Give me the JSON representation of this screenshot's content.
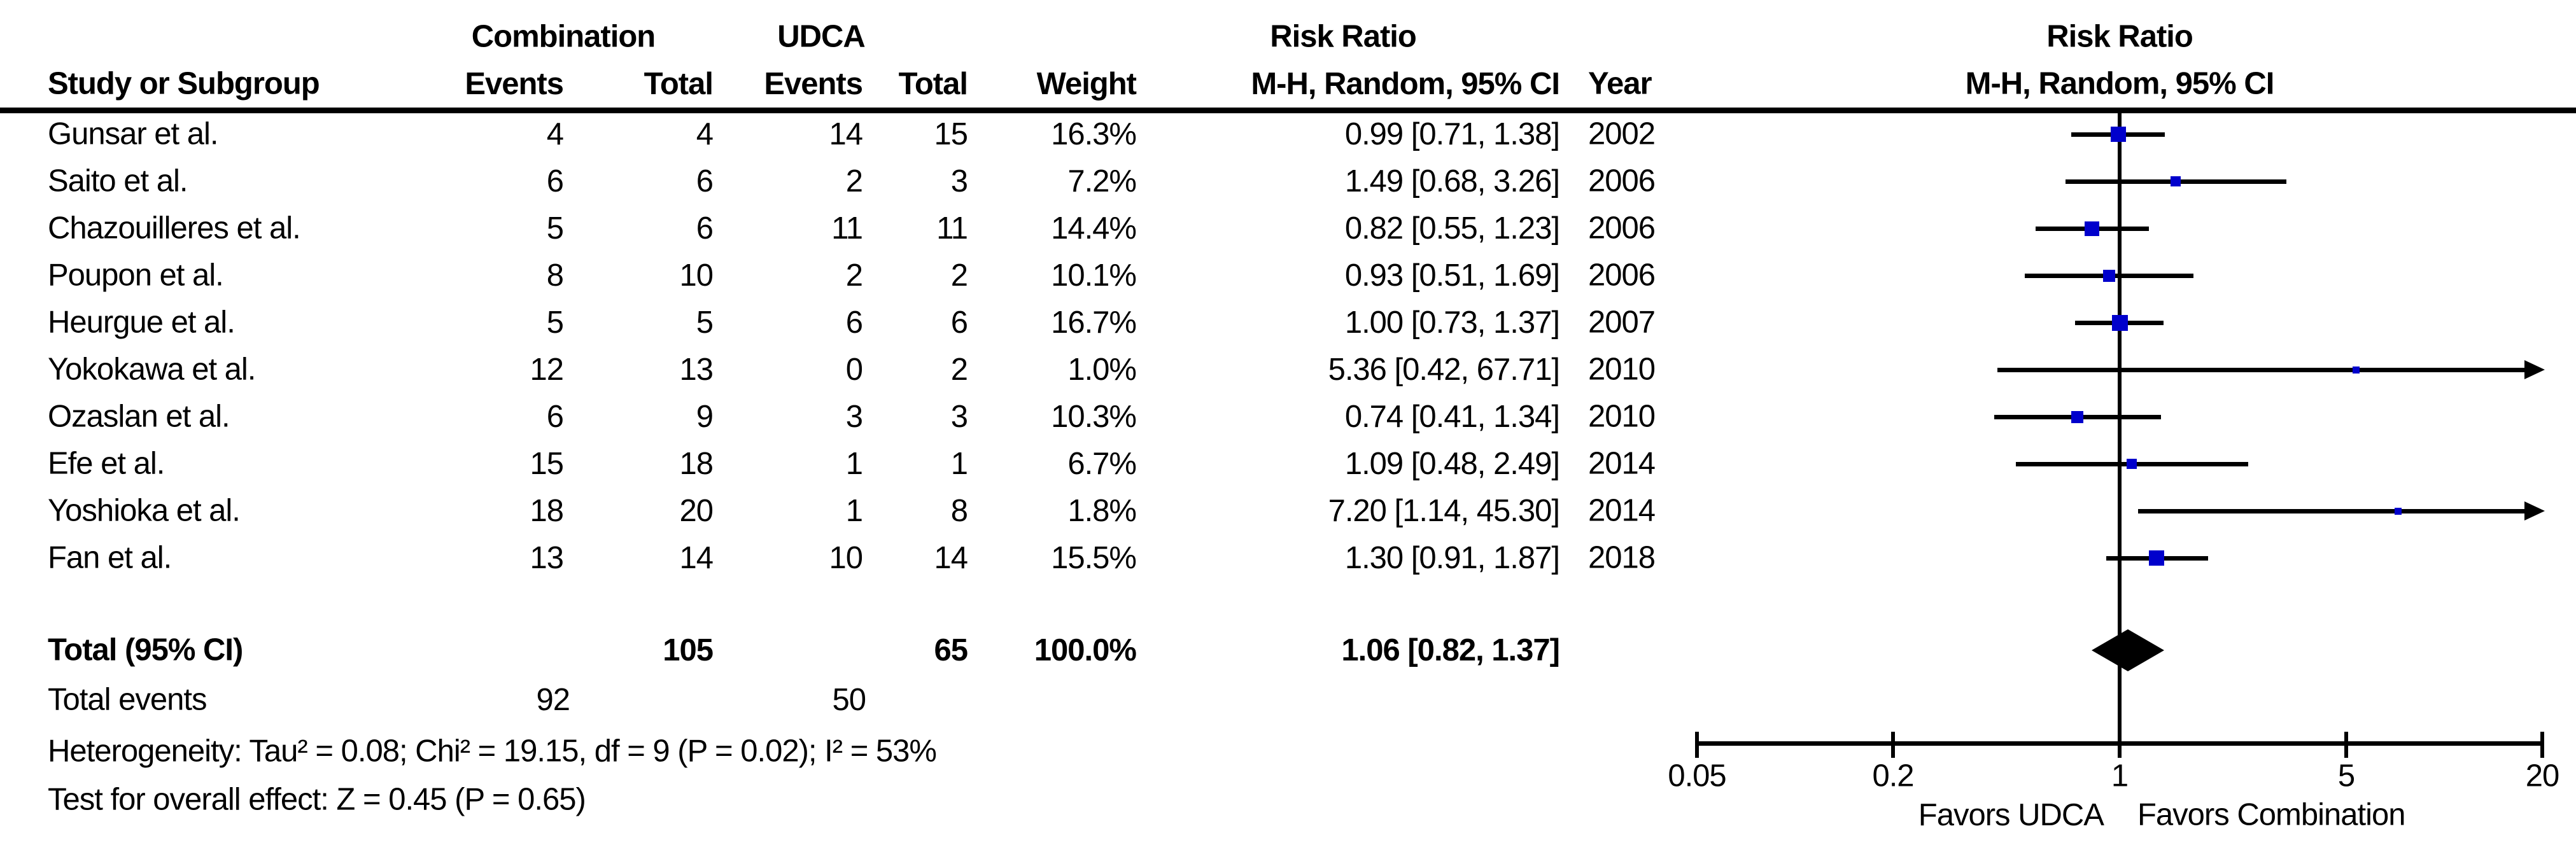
{
  "figure": {
    "table": {
      "group_headers": {
        "combination": "Combination",
        "udca": "UDCA",
        "risk_ratio": "Risk Ratio"
      },
      "column_headers": {
        "study": "Study or Subgroup",
        "events_combination": "Events",
        "total_combination": "Total",
        "events_udca": "Events",
        "total_udca": "Total",
        "weight": "Weight",
        "ci": "M-H, Random, 95% CI",
        "year": "Year"
      }
    },
    "plot_header": {
      "title": "Risk Ratio",
      "subtitle": "M-H, Random, 95% CI"
    },
    "footer": {
      "total_events_label": "Total events",
      "heterogeneity": "Heterogeneity: Tau² = 0.08; Chi² = 19.15, df = 9 (P = 0.02); I² = 53%",
      "overall_effect": "Test for overall effect: Z = 0.45 (P = 0.65)"
    }
  },
  "chart_data": {
    "type": "forest",
    "effect_measure": "Risk Ratio",
    "method": "M-H, Random, 95% CI",
    "x_scale": "log",
    "xlim": [
      0.05,
      20
    ],
    "axis_ticks": [
      0.05,
      0.2,
      1,
      5,
      20
    ],
    "axis_tick_labels": [
      "0.05",
      "0.2",
      "1",
      "5",
      "20"
    ],
    "favors_left": "Favors UDCA",
    "favors_right": "Favors Combination",
    "studies": [
      {
        "study": "Gunsar et al.",
        "events1": 4,
        "total1": 4,
        "events2": 14,
        "total2": 15,
        "weight": "16.3%",
        "weight_pct": 16.3,
        "rr": 0.99,
        "lo": 0.71,
        "hi": 1.38,
        "ci_text": "0.99 [0.71, 1.38]",
        "year": 2002
      },
      {
        "study": "Saito et al.",
        "events1": 6,
        "total1": 6,
        "events2": 2,
        "total2": 3,
        "weight": "7.2%",
        "weight_pct": 7.2,
        "rr": 1.49,
        "lo": 0.68,
        "hi": 3.26,
        "ci_text": "1.49 [0.68, 3.26]",
        "year": 2006
      },
      {
        "study": "Chazouilleres et al.",
        "events1": 5,
        "total1": 6,
        "events2": 11,
        "total2": 11,
        "weight": "14.4%",
        "weight_pct": 14.4,
        "rr": 0.82,
        "lo": 0.55,
        "hi": 1.23,
        "ci_text": "0.82 [0.55, 1.23]",
        "year": 2006
      },
      {
        "study": "Poupon et al.",
        "events1": 8,
        "total1": 10,
        "events2": 2,
        "total2": 2,
        "weight": "10.1%",
        "weight_pct": 10.1,
        "rr": 0.93,
        "lo": 0.51,
        "hi": 1.69,
        "ci_text": "0.93 [0.51, 1.69]",
        "year": 2006
      },
      {
        "study": "Heurgue et al.",
        "events1": 5,
        "total1": 5,
        "events2": 6,
        "total2": 6,
        "weight": "16.7%",
        "weight_pct": 16.7,
        "rr": 1.0,
        "lo": 0.73,
        "hi": 1.37,
        "ci_text": "1.00 [0.73, 1.37]",
        "year": 2007
      },
      {
        "study": "Yokokawa et al.",
        "events1": 12,
        "total1": 13,
        "events2": 0,
        "total2": 2,
        "weight": "1.0%",
        "weight_pct": 1.0,
        "rr": 5.36,
        "lo": 0.42,
        "hi": 67.71,
        "ci_text": "5.36 [0.42, 67.71]",
        "year": 2010
      },
      {
        "study": "Ozaslan et al.",
        "events1": 6,
        "total1": 9,
        "events2": 3,
        "total2": 3,
        "weight": "10.3%",
        "weight_pct": 10.3,
        "rr": 0.74,
        "lo": 0.41,
        "hi": 1.34,
        "ci_text": "0.74 [0.41, 1.34]",
        "year": 2010
      },
      {
        "study": "Efe et al.",
        "events1": 15,
        "total1": 18,
        "events2": 1,
        "total2": 1,
        "weight": "6.7%",
        "weight_pct": 6.7,
        "rr": 1.09,
        "lo": 0.48,
        "hi": 2.49,
        "ci_text": "1.09 [0.48, 2.49]",
        "year": 2014
      },
      {
        "study": "Yoshioka et al.",
        "events1": 18,
        "total1": 20,
        "events2": 1,
        "total2": 8,
        "weight": "1.8%",
        "weight_pct": 1.8,
        "rr": 7.2,
        "lo": 1.14,
        "hi": 45.3,
        "ci_text": "7.20 [1.14, 45.30]",
        "year": 2014
      },
      {
        "study": "Fan et al.",
        "events1": 13,
        "total1": 14,
        "events2": 10,
        "total2": 14,
        "weight": "15.5%",
        "weight_pct": 15.5,
        "rr": 1.3,
        "lo": 0.91,
        "hi": 1.87,
        "ci_text": "1.30 [0.91, 1.87]",
        "year": 2018
      }
    ],
    "total": {
      "label": "Total (95% CI)",
      "total1": 105,
      "total2": 65,
      "weight": "100.0%",
      "rr": 1.06,
      "lo": 0.82,
      "hi": 1.37,
      "ci_text": "1.06 [0.82, 1.37]"
    },
    "total_events": {
      "events1": 92,
      "events2": 50
    }
  },
  "colors": {
    "square": "#0000CC",
    "diamond": "#000000",
    "line": "#000000",
    "text": "#000000",
    "background": "#FFFFFF"
  }
}
